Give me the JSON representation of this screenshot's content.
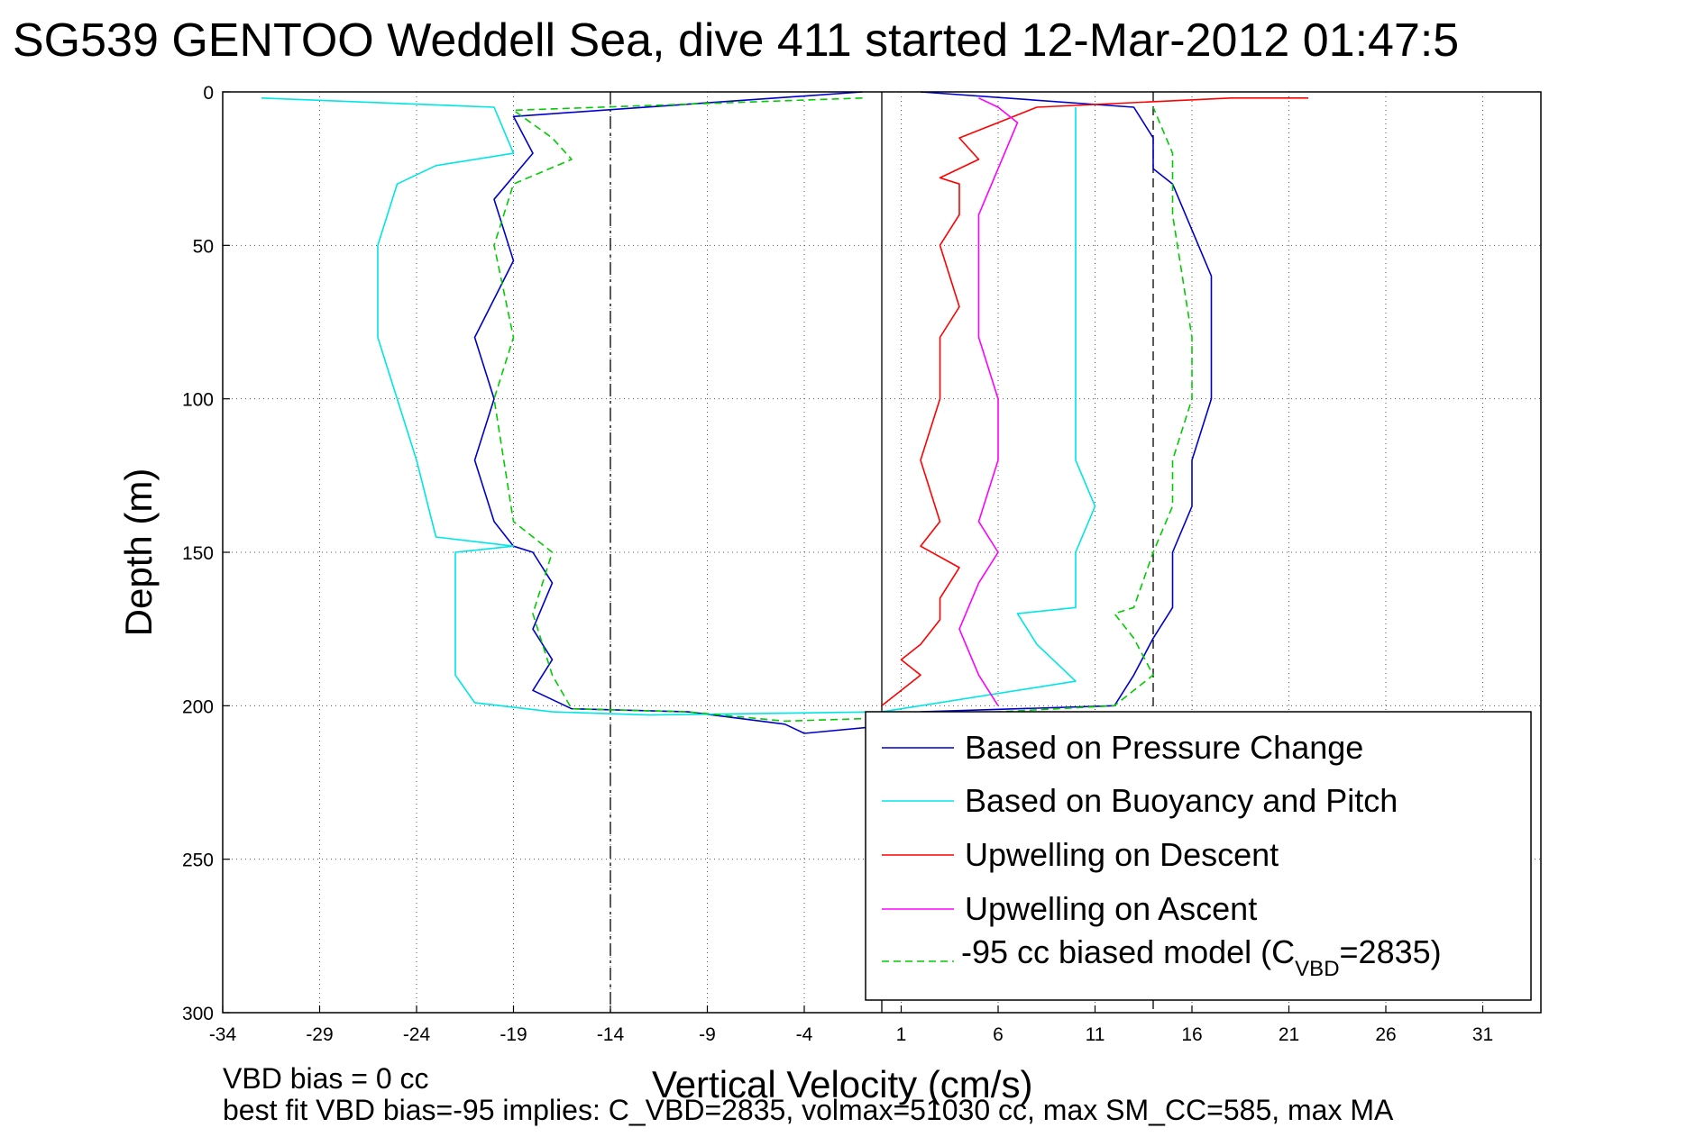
{
  "figure": {
    "title": "SG539 GENTOO Weddell Sea, dive 411 started 12-Mar-2012 01:47:5",
    "footer_line1": "VBD bias = 0 cc",
    "footer_line2": "best fit VBD bias=-95 implies: C_VBD=2835, volmax=51030 cc, max SM_CC=585, max MA"
  },
  "legend": {
    "items": [
      {
        "label": "Based on Pressure Change",
        "color": "#0000cc",
        "dash": false
      },
      {
        "label": "Based on Buoyancy and Pitch",
        "color": "#00e5e5",
        "dash": false
      },
      {
        "label": "Upwelling on Descent",
        "color": "#ff0000",
        "dash": false
      },
      {
        "label": "Upwelling on Ascent",
        "color": "#ff00ff",
        "dash": false
      },
      {
        "label_pre": "-95 cc biased model (C",
        "label_sub": "VBD",
        "label_post": "=2835)",
        "color": "#00cc00",
        "dash": true
      }
    ]
  },
  "chart_data": {
    "type": "line",
    "title": "SG539 GENTOO Weddell Sea, dive 411 started 12-Mar-2012 01:47:5",
    "xlabel": "Vertical Velocity (cm/s)",
    "ylabel": "Depth (m)",
    "xlim": [
      -34,
      34
    ],
    "ylim": [
      0,
      300
    ],
    "y_reversed": true,
    "xticks": [
      -34,
      -29,
      -24,
      -19,
      -14,
      -9,
      -4,
      1,
      6,
      11,
      16,
      21,
      26,
      31
    ],
    "yticks": [
      0,
      50,
      100,
      150,
      200,
      250,
      300
    ],
    "grid": true,
    "legend_position": "lower-right",
    "reference_lines": [
      {
        "x": -14,
        "style": "dashdot"
      },
      {
        "x": 0,
        "style": "solid"
      },
      {
        "x": 14,
        "style": "dashed"
      }
    ],
    "series": [
      {
        "name": "Based on Pressure Change",
        "x": [
          -1,
          -19,
          -18,
          -20,
          -19,
          -21,
          -20,
          -21,
          -20,
          -19,
          -18,
          -17,
          -18,
          -17,
          -18,
          -16,
          -10,
          -5,
          -4,
          1,
          2,
          12,
          13,
          14,
          15,
          15,
          16,
          16,
          17,
          17,
          17,
          16,
          15,
          14,
          14,
          13,
          2
        ],
        "y": [
          0,
          8,
          20,
          35,
          55,
          80,
          100,
          120,
          140,
          148,
          150,
          160,
          175,
          185,
          195,
          201,
          202,
          206,
          209,
          206,
          202,
          200,
          190,
          178,
          168,
          150,
          135,
          120,
          100,
          80,
          60,
          45,
          30,
          25,
          15,
          5,
          0
        ]
      },
      {
        "name": "Based on Buoyancy and Pitch",
        "x": [
          -32,
          -20,
          -19,
          -23,
          -25,
          -26,
          -26,
          -25,
          -24,
          -23,
          -19,
          -22,
          -22,
          -22,
          -21,
          -17,
          -12,
          0,
          10,
          8,
          7,
          10,
          10,
          11,
          10,
          10,
          10,
          10,
          10
        ],
        "y": [
          2,
          5,
          20,
          24,
          30,
          50,
          80,
          100,
          120,
          145,
          148,
          150,
          170,
          190,
          199,
          202,
          203,
          202,
          192,
          180,
          170,
          168,
          150,
          135,
          120,
          100,
          80,
          40,
          5
        ]
      },
      {
        "name": "Upwelling on Descent",
        "x": [
          0,
          2,
          1,
          2,
          3,
          3,
          4,
          2,
          3,
          2,
          3,
          3,
          4,
          3,
          4,
          4,
          3,
          5,
          4,
          6,
          8,
          18,
          22
        ],
        "y": [
          200,
          190,
          185,
          180,
          172,
          165,
          155,
          148,
          140,
          120,
          100,
          80,
          70,
          50,
          40,
          30,
          28,
          22,
          15,
          10,
          5,
          2,
          2
        ]
      },
      {
        "name": "Upwelling on Ascent",
        "x": [
          6,
          5,
          4,
          5,
          6,
          5,
          6,
          6,
          5,
          5,
          5,
          6,
          7,
          6,
          5
        ],
        "y": [
          200,
          190,
          175,
          160,
          150,
          140,
          120,
          100,
          80,
          60,
          40,
          25,
          10,
          5,
          2
        ]
      },
      {
        "name": "-95 cc biased model (C_VBD=2835)",
        "x": [
          -1,
          -19,
          -17,
          -16,
          -19,
          -20,
          -19,
          -20,
          -19,
          -17,
          -18,
          -17,
          -16,
          -10,
          -5,
          0,
          12,
          13,
          14,
          13,
          12,
          13,
          14,
          15,
          15,
          16,
          16,
          15,
          15,
          14
        ],
        "y": [
          2,
          6,
          15,
          22,
          30,
          50,
          80,
          100,
          140,
          150,
          170,
          190,
          201,
          202,
          205,
          204,
          200,
          195,
          190,
          178,
          170,
          168,
          150,
          135,
          120,
          100,
          80,
          40,
          20,
          5
        ]
      }
    ]
  }
}
